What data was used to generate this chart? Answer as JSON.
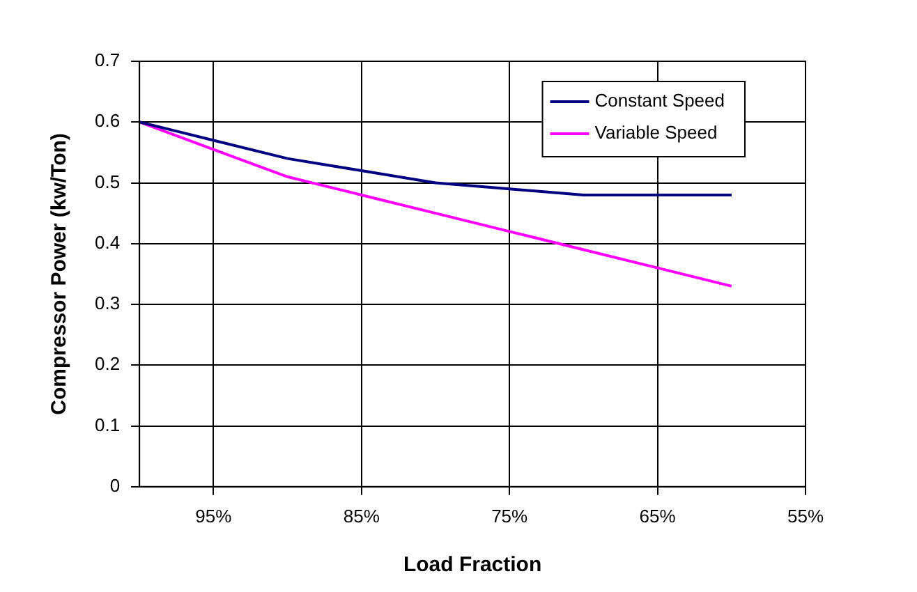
{
  "chart_data": {
    "type": "line",
    "xlabel": "Load Fraction",
    "ylabel": "Compressor Power (kw/Ton)",
    "x": [
      100,
      95,
      90,
      85,
      80,
      75,
      70,
      65,
      60
    ],
    "series": [
      {
        "name": "Constant Speed",
        "color": "#000080",
        "values": [
          0.6,
          0.57,
          0.54,
          0.52,
          0.5,
          0.49,
          0.48,
          0.48,
          0.48
        ]
      },
      {
        "name": "Variable Speed",
        "color": "#ff00ff",
        "values": [
          0.6,
          0.555,
          0.51,
          0.48,
          0.45,
          0.42,
          0.39,
          0.36,
          0.33
        ]
      }
    ],
    "xlim": [
      100,
      55
    ],
    "xticks": [
      {
        "value": 95,
        "label": "95%"
      },
      {
        "value": 85,
        "label": "85%"
      },
      {
        "value": 75,
        "label": "75%"
      },
      {
        "value": 65,
        "label": "65%"
      },
      {
        "value": 55,
        "label": "55%"
      }
    ],
    "ylim": [
      0,
      0.7
    ],
    "yticks": [
      0,
      0.1,
      0.2,
      0.3,
      0.4,
      0.5,
      0.6,
      0.7
    ],
    "grid": true,
    "legend": "top right",
    "marker": "none",
    "line_style": "solid"
  }
}
